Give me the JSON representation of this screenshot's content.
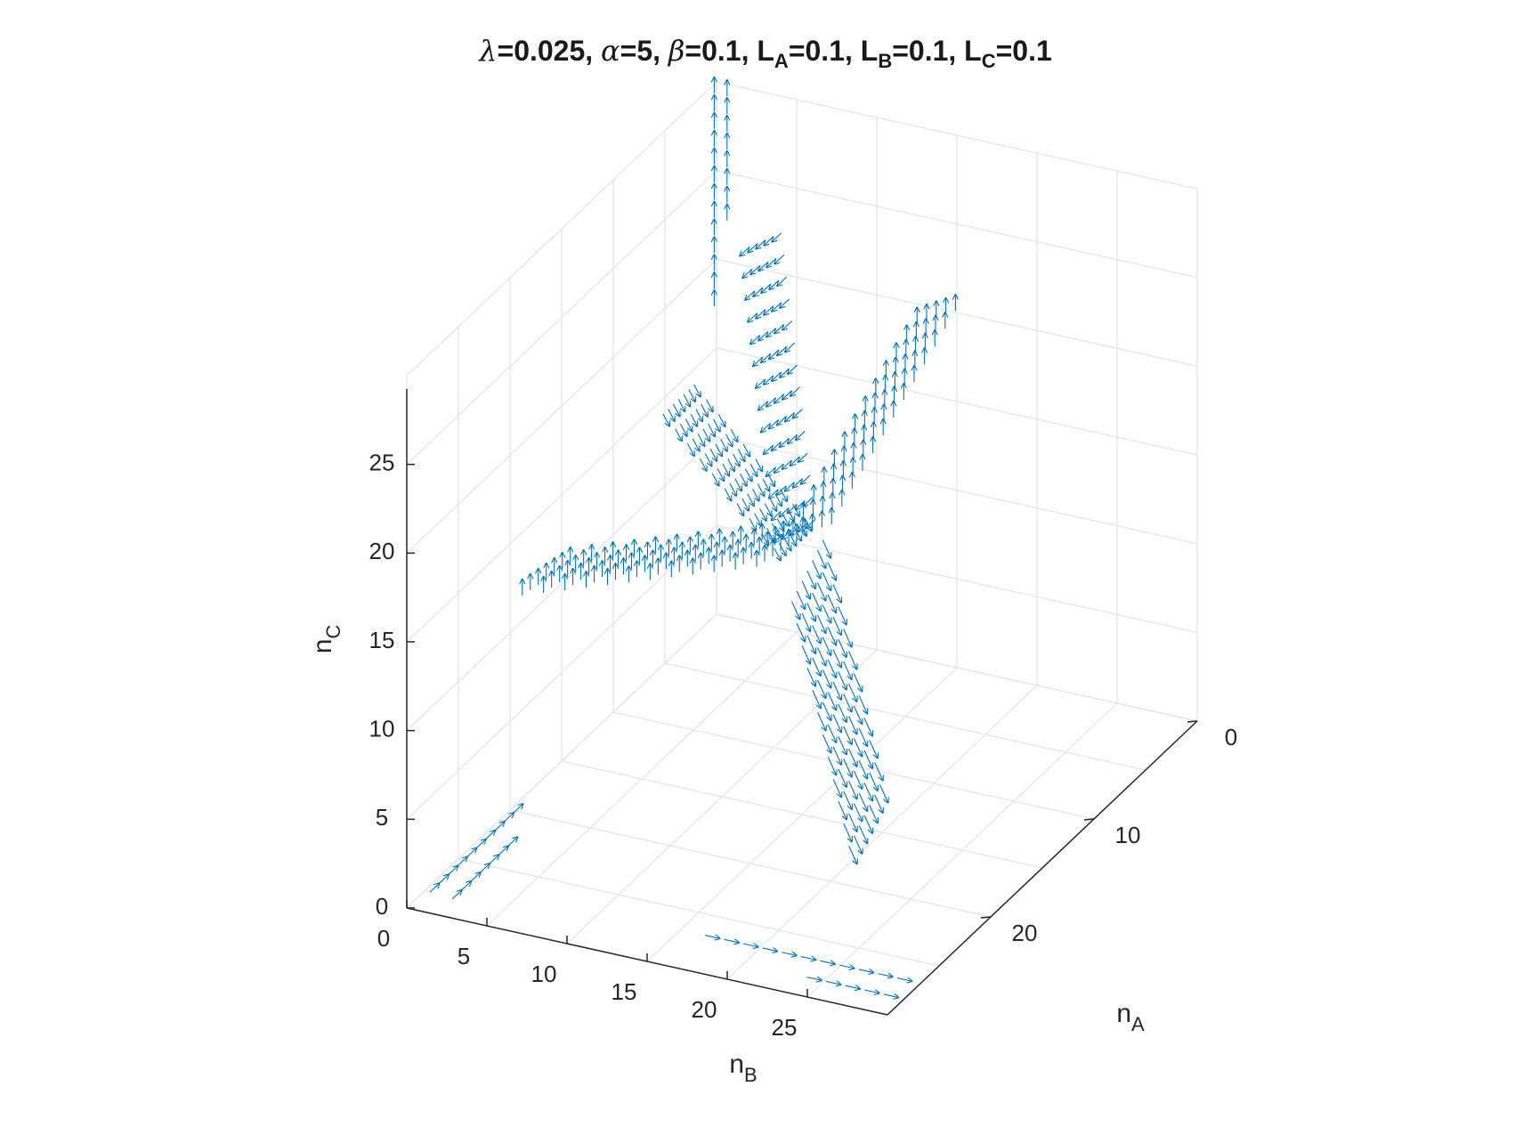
{
  "chart_data": {
    "type": "quiver3d",
    "title_parts": [
      {
        "t": "λ",
        "sym": true
      },
      {
        "t": "=0.025, "
      },
      {
        "t": "α",
        "sym": true
      },
      {
        "t": "=5, "
      },
      {
        "t": "β",
        "sym": true
      },
      {
        "t": "=0.1, L"
      },
      {
        "t": "A",
        "sub": true
      },
      {
        "t": "=0.1, L"
      },
      {
        "t": "B",
        "sub": true
      },
      {
        "t": "=0.1, L"
      },
      {
        "t": "C",
        "sub": true
      },
      {
        "t": "=0.1"
      }
    ],
    "parameters": {
      "lambda": 0.025,
      "alpha": 5,
      "beta": 0.1,
      "L_A": 0.1,
      "L_B": 0.1,
      "L_C": 0.1
    },
    "axes": {
      "x": {
        "label": "n",
        "label_sub": "A",
        "ticks": [
          0,
          10,
          20
        ],
        "range": [
          0,
          30
        ]
      },
      "y": {
        "label": "n",
        "label_sub": "B",
        "ticks": [
          0,
          5,
          10,
          15,
          20,
          25
        ],
        "range": [
          0,
          30
        ]
      },
      "z": {
        "label": "n",
        "label_sub": "C",
        "ticks": [
          0,
          5,
          10,
          15,
          20,
          25
        ],
        "range": [
          0,
          30
        ]
      }
    },
    "grid": true,
    "series": [
      {
        "name": "",
        "color": "#0072BD"
      }
    ],
    "field_regions": [
      {
        "center": [
          15,
          15,
          15
        ],
        "description": "central fixed point where sheets intersect"
      },
      {
        "sheet": "arrows pointing up (+n_C) extending from center toward high n_A"
      },
      {
        "sheet": "arrows pointing up (+n_C) extending from center toward high n_B"
      },
      {
        "sheet": "arrows pointing along -n_A direction extending from center"
      },
      {
        "sheet": "arrows pointing down (-n_C) near base"
      },
      {
        "edge": "vertical arrows along n_C axis at n_A=0, n_B=0 (top)"
      },
      {
        "edge": "arrows along base edges near n_C=0"
      }
    ]
  }
}
